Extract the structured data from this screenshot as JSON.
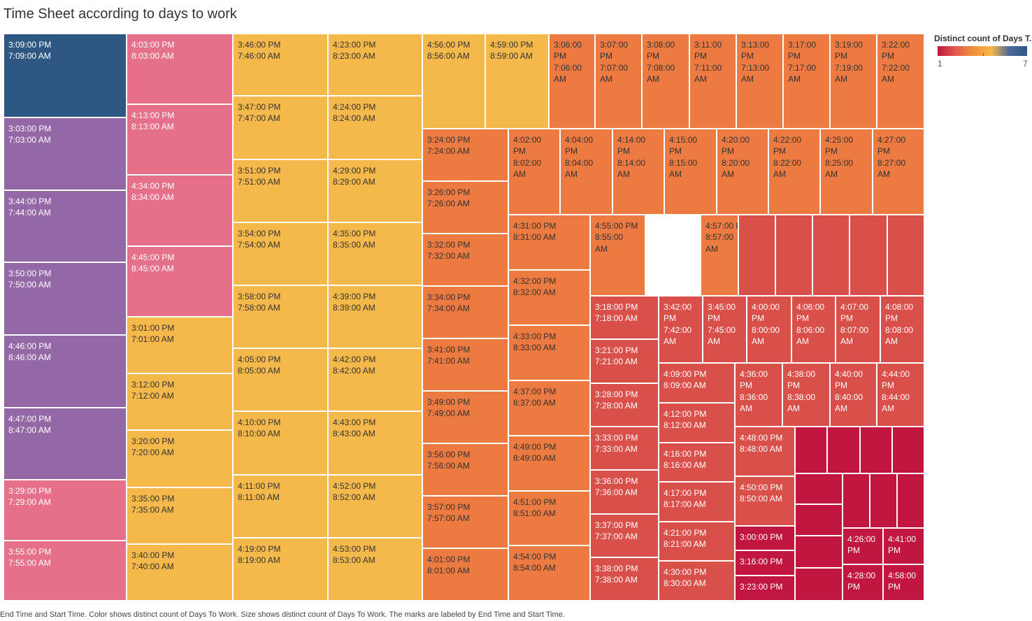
{
  "title": "Time Sheet according to days to work",
  "caption": "End Time and Start Time.  Color shows distinct count of Days To Work.  Size shows distinct count of Days To Work.  The marks are labeled by End Time and Start Time.",
  "legend": {
    "title": "Distinct count of Days T..",
    "min": "1",
    "max": "7"
  },
  "colors": {
    "7": "#2e5784",
    "6": "#9467a6",
    "5": "#e66f89",
    "4": "#f5b84a",
    "3": "#ed7a41",
    "2": "#d9504b",
    "1": "#c0163f"
  },
  "chart_data": {
    "type": "treemap",
    "measure": "distinct count of Days To Work",
    "color_range": [
      1,
      7
    ],
    "cells": [
      {
        "label": "3:09:00 PM\n7:09:00 AM",
        "value": 7
      },
      {
        "label": "3:03:00 PM\n7:03:00 AM",
        "value": 6
      },
      {
        "label": "3:44:00 PM\n7:44:00 AM",
        "value": 6
      },
      {
        "label": "3:50:00 PM\n7:50:00 AM",
        "value": 6
      },
      {
        "label": "4:46:00 PM\n8:46:00 AM",
        "value": 6
      },
      {
        "label": "4:47:00 PM\n8:47:00 AM",
        "value": 6
      },
      {
        "label": "3:29:00 PM\n7:29:00 AM",
        "value": 5
      },
      {
        "label": "3:55:00 PM\n7:55:00 AM",
        "value": 5
      },
      {
        "label": "4:03:00 PM\n8:03:00 AM",
        "value": 5
      },
      {
        "label": "4:13:00 PM\n8:13:00 AM",
        "value": 5
      },
      {
        "label": "4:34:00 PM\n8:34:00 AM",
        "value": 5
      },
      {
        "label": "4:45:00 PM\n8:45:00 AM",
        "value": 5
      },
      {
        "label": "3:01:00 PM\n7:01:00 AM",
        "value": 4
      },
      {
        "label": "3:12:00 PM\n7:12:00 AM",
        "value": 4
      },
      {
        "label": "3:20:00 PM\n7:20:00 AM",
        "value": 4
      },
      {
        "label": "3:35:00 PM\n7:35:00 AM",
        "value": 4
      },
      {
        "label": "3:40:00 PM\n7:40:00 AM",
        "value": 4
      },
      {
        "label": "3:46:00 PM\n7:46:00 AM",
        "value": 4
      },
      {
        "label": "3:47:00 PM\n7:47:00 AM",
        "value": 4
      },
      {
        "label": "3:51:00 PM\n7:51:00 AM",
        "value": 4
      },
      {
        "label": "3:54:00 PM\n7:54:00 AM",
        "value": 4
      },
      {
        "label": "3:58:00 PM\n7:58:00 AM",
        "value": 4
      },
      {
        "label": "4:05:00 PM\n8:05:00 AM",
        "value": 4
      },
      {
        "label": "4:10:00 PM\n8:10:00 AM",
        "value": 4
      },
      {
        "label": "4:11:00 PM\n8:11:00 AM",
        "value": 4
      },
      {
        "label": "4:19:00 PM\n8:19:00 AM",
        "value": 4
      },
      {
        "label": "4:23:00 PM\n8:23:00 AM",
        "value": 4
      },
      {
        "label": "4:24:00 PM\n8:24:00 AM",
        "value": 4
      },
      {
        "label": "4:29:00 PM\n8:29:00 AM",
        "value": 4
      },
      {
        "label": "4:35:00 PM\n8:35:00 AM",
        "value": 4
      },
      {
        "label": "4:39:00 PM\n8:39:00 AM",
        "value": 4
      },
      {
        "label": "4:42:00 PM\n8:42:00 AM",
        "value": 4
      },
      {
        "label": "4:43:00 PM\n8:43:00 AM",
        "value": 4
      },
      {
        "label": "4:52:00 PM\n8:52:00 AM",
        "value": 4
      },
      {
        "label": "4:53:00 PM\n8:53:00 AM",
        "value": 4
      },
      {
        "label": "4:56:00 PM\n8:56:00 AM",
        "value": 4
      },
      {
        "label": "4:59:00 PM\n8:59:00 AM",
        "value": 4
      },
      {
        "label": "3:06:00\nPM\n7:06:00\nAM",
        "value": 3
      },
      {
        "label": "3:07:00\nPM\n7:07:00\nAM",
        "value": 3
      },
      {
        "label": "3:08:00\nPM\n7:08:00\nAM",
        "value": 3
      },
      {
        "label": "3:11:00\nPM\n7:11:00\nAM",
        "value": 3
      },
      {
        "label": "3:13:00\nPM\n7:13:00\nAM",
        "value": 3
      },
      {
        "label": "3:17:00\nPM\n7:17:00\nAM",
        "value": 3
      },
      {
        "label": "3:19:00\nPM\n7:19:00\nAM",
        "value": 3
      },
      {
        "label": "3:22:00\nPM\n7:22:00\nAM",
        "value": 3
      },
      {
        "label": "3:24:00 PM\n7:24:00 AM",
        "value": 3
      },
      {
        "label": "3:26:00 PM\n7:26:00 AM",
        "value": 3
      },
      {
        "label": "3:32:00 PM\n7:32:00 AM",
        "value": 3
      },
      {
        "label": "3:34:00 PM\n7:34:00 AM",
        "value": 3
      },
      {
        "label": "3:41:00 PM\n7:41:00 AM",
        "value": 3
      },
      {
        "label": "3:49:00 PM\n7:49:00 AM",
        "value": 3
      },
      {
        "label": "3:56:00 PM\n7:56:00 AM",
        "value": 3
      },
      {
        "label": "3:57:00 PM\n7:57:00 AM",
        "value": 3
      },
      {
        "label": "4:01:00 PM\n8:01:00 AM",
        "value": 3
      },
      {
        "label": "4:02:00\nPM\n8:02:00\nAM",
        "value": 3
      },
      {
        "label": "4:04:00\nPM\n8:04:00\nAM",
        "value": 3
      },
      {
        "label": "4:14:00\nPM\n8:14:00\nAM",
        "value": 3
      },
      {
        "label": "4:15:00\nPM\n8:15:00\nAM",
        "value": 3
      },
      {
        "label": "4:20:00\nPM\n8:20:00\nAM",
        "value": 3
      },
      {
        "label": "4:22:00\nPM\n8:22:00\nAM",
        "value": 3
      },
      {
        "label": "4:25:00\nPM\n8:25:00\nAM",
        "value": 3
      },
      {
        "label": "4:27:00\nPM\n8:27:00\nAM",
        "value": 3
      },
      {
        "label": "4:31:00 PM\n8:31:00 AM",
        "value": 3
      },
      {
        "label": "4:32:00 PM\n8:32:00 AM",
        "value": 3
      },
      {
        "label": "4:33:00 PM\n8:33:00 AM",
        "value": 3
      },
      {
        "label": "4:37:00 PM\n8:37:00 AM",
        "value": 3
      },
      {
        "label": "4:49:00 PM\n8:49:00 AM",
        "value": 3
      },
      {
        "label": "4:51:00 PM\n8:51:00 AM",
        "value": 3
      },
      {
        "label": "4:54:00 PM\n8:54:00 AM",
        "value": 3
      },
      {
        "label": "4:55:00 PM\n8:55:00\nAM",
        "value": 3
      },
      {
        "label": "4:57:00 PM\n8:57:00\nAM",
        "value": 3
      },
      {
        "label": "",
        "value": 2
      },
      {
        "label": "",
        "value": 2
      },
      {
        "label": "",
        "value": 2
      },
      {
        "label": "",
        "value": 2
      },
      {
        "label": "",
        "value": 2
      },
      {
        "label": "",
        "value": 2
      },
      {
        "label": "3:18:00 PM\n7:18:00 AM",
        "value": 2
      },
      {
        "label": "3:21:00 PM\n7:21:00 AM",
        "value": 2
      },
      {
        "label": "3:28:00 PM\n7:28:00 AM",
        "value": 2
      },
      {
        "label": "3:33:00 PM\n7:33:00 AM",
        "value": 2
      },
      {
        "label": "3:36:00 PM\n7:36:00 AM",
        "value": 2
      },
      {
        "label": "3:37:00 PM\n7:37:00 AM",
        "value": 2
      },
      {
        "label": "3:38:00 PM\n7:38:00 AM",
        "value": 2
      },
      {
        "label": "3:42:00\nPM\n7:42:00\nAM",
        "value": 2
      },
      {
        "label": "3:45:00\nPM\n7:45:00\nAM",
        "value": 2
      },
      {
        "label": "4:00:00\nPM\n8:00:00\nAM",
        "value": 2
      },
      {
        "label": "4:06:00\nPM\n8:06:00\nAM",
        "value": 2
      },
      {
        "label": "4:07:00\nPM\n8:07:00\nAM",
        "value": 2
      },
      {
        "label": "4:08:00\nPM\n8:08:00\nAM",
        "value": 2
      },
      {
        "label": "4:09:00 PM\n8:09:00 AM",
        "value": 2
      },
      {
        "label": "4:12:00 PM\n8:12:00 AM",
        "value": 2
      },
      {
        "label": "4:16:00 PM\n8:16:00 AM",
        "value": 2
      },
      {
        "label": "4:17:00 PM\n8:17:00 AM",
        "value": 2
      },
      {
        "label": "4:21:00 PM\n8:21:00 AM",
        "value": 2
      },
      {
        "label": "4:30:00 PM\n8:30:00 AM",
        "value": 2
      },
      {
        "label": "4:36:00\nPM\n8:36:00\nAM",
        "value": 2
      },
      {
        "label": "4:38:00\nPM\n8:38:00\nAM",
        "value": 2
      },
      {
        "label": "4:40:00\nPM\n8:40:00\nAM",
        "value": 2
      },
      {
        "label": "4:44:00\nPM\n8:44:00\nAM",
        "value": 2
      },
      {
        "label": "4:48:00 PM\n8:48:00 AM",
        "value": 2
      },
      {
        "label": "4:50:00 PM\n8:50:00 AM",
        "value": 2
      },
      {
        "label": "3:00:00 PM",
        "value": 1
      },
      {
        "label": "3:16:00 PM",
        "value": 1
      },
      {
        "label": "3:23:00 PM",
        "value": 1
      },
      {
        "label": "",
        "value": 1
      },
      {
        "label": "",
        "value": 1
      },
      {
        "label": "",
        "value": 1
      },
      {
        "label": "",
        "value": 1
      },
      {
        "label": "",
        "value": 1
      },
      {
        "label": "",
        "value": 1
      },
      {
        "label": "",
        "value": 1
      },
      {
        "label": "",
        "value": 1
      },
      {
        "label": "",
        "value": 1
      },
      {
        "label": "",
        "value": 1
      },
      {
        "label": "",
        "value": 1
      },
      {
        "label": "4:26:00\nPM",
        "value": 1
      },
      {
        "label": "4:41:00\nPM",
        "value": 1
      },
      {
        "label": "4:28:00\nPM",
        "value": 1
      },
      {
        "label": "4:58:00\nPM",
        "value": 1
      }
    ]
  }
}
